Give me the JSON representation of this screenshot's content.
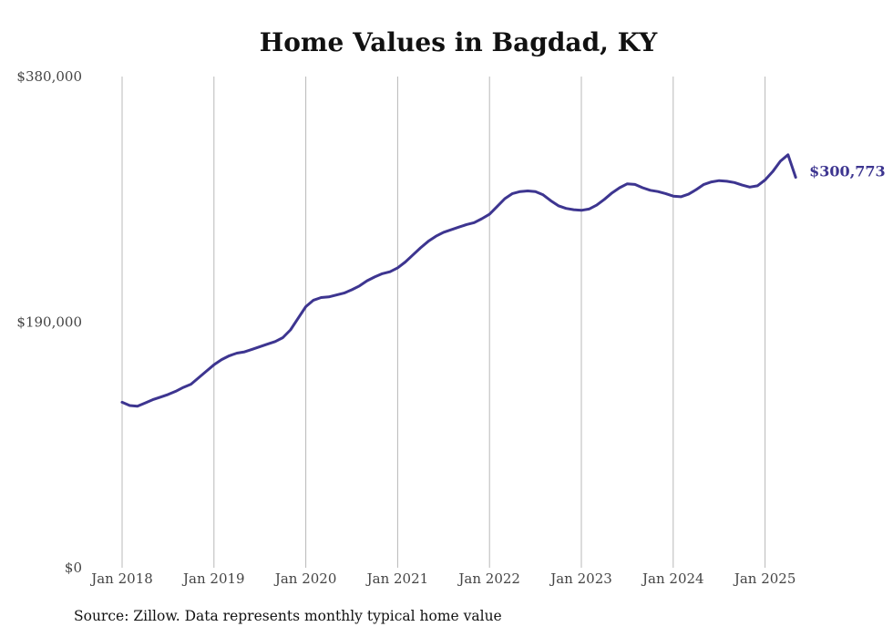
{
  "chart_data": {
    "type": "line",
    "title": "Home Values in Bagdad, KY",
    "source_note": "Source: Zillow. Data represents monthly typical home value",
    "xlabel": "",
    "ylabel": "",
    "ylim": [
      0,
      380000
    ],
    "ytick_labels": [
      "$0",
      "$190,000",
      "$380,000"
    ],
    "yticks": [
      0,
      190000,
      380000
    ],
    "xtick_labels": [
      "Jan 2018",
      "Jan 2019",
      "Jan 2020",
      "Jan 2021",
      "Jan 2022",
      "Jan 2023",
      "Jan 2024",
      "Jan 2025"
    ],
    "grid": "vertical",
    "line_color": "#3d3590",
    "end_label": "$300,773",
    "series": [
      {
        "values": [
          [
            2018.0,
            128000
          ],
          [
            2018.083,
            125500
          ],
          [
            2018.167,
            125000
          ],
          [
            2018.25,
            127500
          ],
          [
            2018.333,
            130000
          ],
          [
            2018.417,
            132000
          ],
          [
            2018.5,
            134000
          ],
          [
            2018.583,
            136500
          ],
          [
            2018.667,
            139500
          ],
          [
            2018.75,
            142000
          ],
          [
            2018.833,
            147000
          ],
          [
            2018.917,
            152000
          ],
          [
            2019.0,
            157000
          ],
          [
            2019.083,
            161000
          ],
          [
            2019.167,
            164000
          ],
          [
            2019.25,
            166000
          ],
          [
            2019.333,
            167000
          ],
          [
            2019.417,
            169000
          ],
          [
            2019.5,
            171000
          ],
          [
            2019.583,
            173000
          ],
          [
            2019.667,
            175000
          ],
          [
            2019.75,
            178000
          ],
          [
            2019.833,
            184000
          ],
          [
            2019.917,
            193000
          ],
          [
            2020.0,
            202000
          ],
          [
            2020.083,
            207000
          ],
          [
            2020.167,
            209000
          ],
          [
            2020.25,
            209500
          ],
          [
            2020.333,
            211000
          ],
          [
            2020.417,
            212500
          ],
          [
            2020.5,
            215000
          ],
          [
            2020.583,
            218000
          ],
          [
            2020.667,
            222000
          ],
          [
            2020.75,
            225000
          ],
          [
            2020.833,
            227500
          ],
          [
            2020.917,
            229000
          ],
          [
            2021.0,
            232000
          ],
          [
            2021.083,
            236500
          ],
          [
            2021.167,
            242000
          ],
          [
            2021.25,
            247500
          ],
          [
            2021.333,
            252500
          ],
          [
            2021.417,
            256500
          ],
          [
            2021.5,
            259500
          ],
          [
            2021.583,
            261500
          ],
          [
            2021.667,
            263500
          ],
          [
            2021.75,
            265500
          ],
          [
            2021.833,
            267000
          ],
          [
            2021.917,
            270000
          ],
          [
            2022.0,
            273500
          ],
          [
            2022.083,
            279500
          ],
          [
            2022.167,
            285500
          ],
          [
            2022.25,
            289500
          ],
          [
            2022.333,
            291000
          ],
          [
            2022.417,
            291500
          ],
          [
            2022.5,
            291000
          ],
          [
            2022.583,
            288500
          ],
          [
            2022.667,
            284000
          ],
          [
            2022.75,
            280000
          ],
          [
            2022.833,
            278000
          ],
          [
            2022.917,
            277000
          ],
          [
            2023.0,
            276500
          ],
          [
            2023.083,
            277500
          ],
          [
            2023.167,
            280500
          ],
          [
            2023.25,
            285000
          ],
          [
            2023.333,
            290000
          ],
          [
            2023.417,
            294000
          ],
          [
            2023.5,
            297000
          ],
          [
            2023.583,
            296500
          ],
          [
            2023.667,
            294000
          ],
          [
            2023.75,
            292000
          ],
          [
            2023.833,
            291000
          ],
          [
            2023.917,
            289500
          ],
          [
            2024.0,
            287500
          ],
          [
            2024.083,
            287000
          ],
          [
            2024.167,
            289000
          ],
          [
            2024.25,
            292500
          ],
          [
            2024.333,
            296500
          ],
          [
            2024.417,
            298500
          ],
          [
            2024.5,
            299500
          ],
          [
            2024.583,
            299000
          ],
          [
            2024.667,
            298000
          ],
          [
            2024.75,
            296000
          ],
          [
            2024.833,
            294500
          ],
          [
            2024.917,
            295500
          ],
          [
            2025.0,
            300000
          ],
          [
            2025.083,
            306500
          ],
          [
            2025.167,
            314500
          ],
          [
            2025.25,
            319500
          ],
          [
            2025.333,
            302000
          ]
        ]
      }
    ]
  }
}
